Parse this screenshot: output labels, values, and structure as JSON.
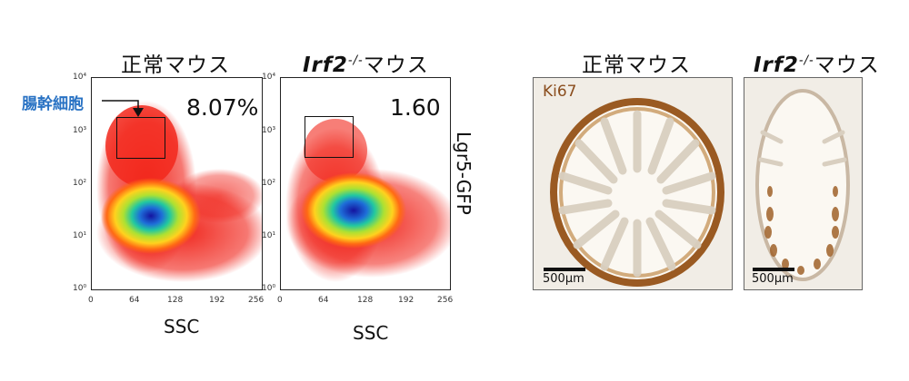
{
  "panels": {
    "normal_mouse": "正常マウス",
    "irf2_gene": "Irf2",
    "irf2_superscript": "-/-",
    "mouse_suffix": "マウス"
  },
  "annotation": "腸幹細胞",
  "facs": {
    "normal_percent": "8.07%",
    "irf2_percent": "1.60",
    "xlabel": "SSC",
    "ylabel": "Lgr5-GFP",
    "xticks": [
      "0",
      "64",
      "128",
      "192",
      "256"
    ],
    "yticks": [
      "10⁰",
      "10¹",
      "10²",
      "10³",
      "10⁴"
    ]
  },
  "histology": {
    "stain_label": "Ki67",
    "scalebar_label": "500μm"
  },
  "colors": {
    "annotation": "#2a73c4",
    "ki67_stain": "#8a4d1d",
    "section_background": "#f1ede6"
  }
}
